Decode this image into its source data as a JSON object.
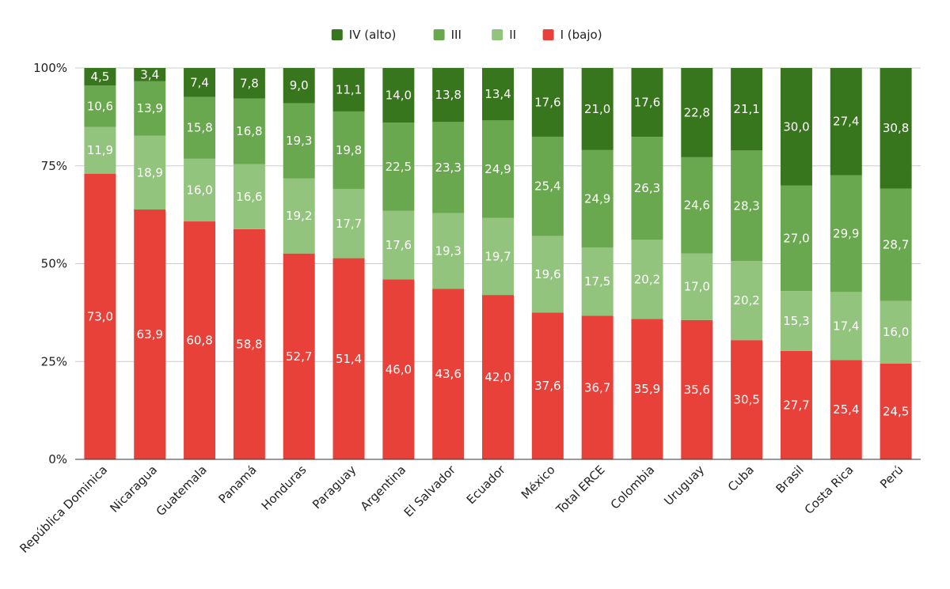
{
  "chart_data": {
    "type": "bar",
    "stacked": true,
    "percent_stacked": true,
    "categories": [
      "República Dominica",
      "Nicaragua",
      "Guatemala",
      "Panamá",
      "Honduras",
      "Paraguay",
      "Argentina",
      "El Salvador",
      "Ecuador",
      "México",
      "Total ERCE",
      "Colombia",
      "Uruguay",
      "Cuba",
      "Brasil",
      "Costa Rica",
      "Perú"
    ],
    "series": [
      {
        "name": "I (bajo)",
        "color": "#e8413a",
        "values": [
          73.0,
          63.9,
          60.8,
          58.8,
          52.7,
          51.4,
          46.0,
          43.6,
          42.0,
          37.6,
          36.7,
          35.9,
          35.6,
          30.5,
          27.7,
          25.4,
          24.5
        ],
        "labels": [
          "73,0",
          "63,9",
          "60,8",
          "58,8",
          "52,7",
          "51,4",
          "46,0",
          "43,6",
          "42,0",
          "37,6",
          "36,7",
          "35,9",
          "35,6",
          "30,5",
          "27,7",
          "25,4",
          "24,5"
        ]
      },
      {
        "name": "II",
        "color": "#93c47d",
        "values": [
          11.9,
          18.9,
          16.0,
          16.6,
          19.2,
          17.7,
          17.6,
          19.3,
          19.7,
          19.6,
          17.5,
          20.2,
          17.0,
          20.2,
          15.3,
          17.4,
          16.0
        ],
        "labels": [
          "11,9",
          "18,9",
          "16,0",
          "16,6",
          "19,2",
          "17,7",
          "17,6",
          "19,3",
          "19,7",
          "19,6",
          "17,5",
          "20,2",
          "17,0",
          "20,2",
          "15,3",
          "17,4",
          "16,0"
        ]
      },
      {
        "name": "III",
        "color": "#6aa84f",
        "values": [
          10.6,
          13.9,
          15.8,
          16.8,
          19.3,
          19.8,
          22.5,
          23.3,
          24.9,
          25.4,
          24.9,
          26.3,
          24.6,
          28.3,
          27.0,
          29.9,
          28.7
        ],
        "labels": [
          "10,6",
          "13,9",
          "15,8",
          "16,8",
          "19,3",
          "19,8",
          "22,5",
          "23,3",
          "24,9",
          "25,4",
          "24,9",
          "26,3",
          "24,6",
          "28,3",
          "27,0",
          "29,9",
          "28,7"
        ]
      },
      {
        "name": "IV (alto)",
        "color": "#38761d",
        "values": [
          4.5,
          3.4,
          7.4,
          7.8,
          9.0,
          11.1,
          14.0,
          13.8,
          13.4,
          17.6,
          21.0,
          17.6,
          22.8,
          21.1,
          30.0,
          27.4,
          30.8
        ],
        "labels": [
          "4,5",
          "3,4",
          "7,4",
          "7,8",
          "9,0",
          "11,1",
          "14,0",
          "13,8",
          "13,4",
          "17,6",
          "21,0",
          "17,6",
          "22,8",
          "21,1",
          "30,0",
          "27,4",
          "30,8"
        ]
      }
    ],
    "legend_order": [
      "IV (alto)",
      "III",
      "II",
      "I (bajo)"
    ],
    "legend_position": "top",
    "y_ticks": [
      0,
      25,
      50,
      75,
      100
    ],
    "y_tick_labels": [
      "0%",
      "25%",
      "50%",
      "75%",
      "100%"
    ],
    "ylim": [
      0,
      100
    ],
    "grid": true,
    "title": "",
    "xlabel": "",
    "ylabel": ""
  }
}
